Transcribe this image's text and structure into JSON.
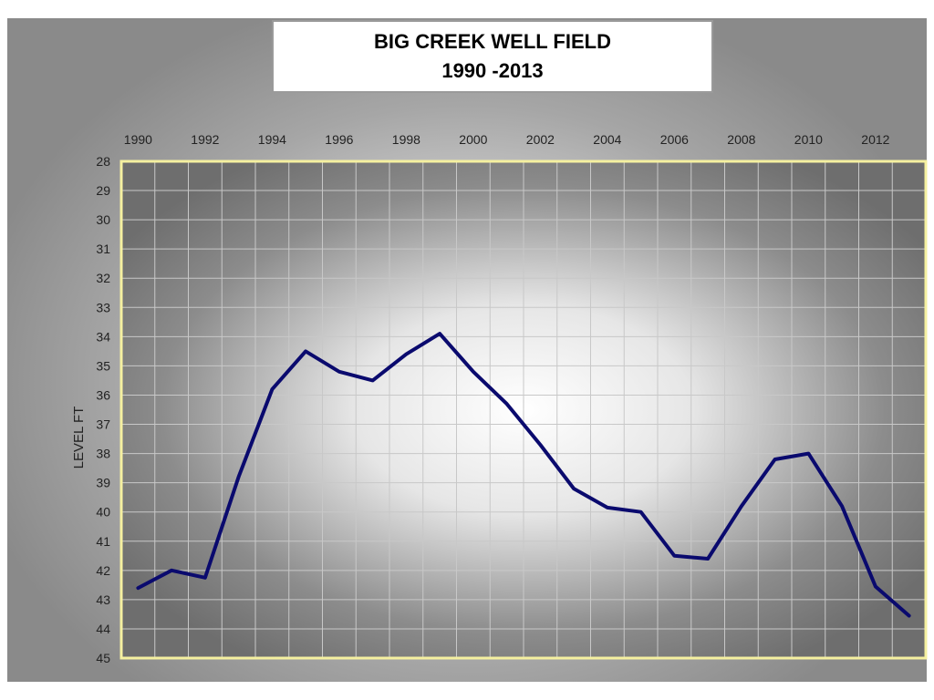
{
  "chart_data": {
    "type": "line",
    "title_line1": "BIG CREEK WELL FIELD",
    "title_line2": "1990 -2013",
    "xlabel": "",
    "ylabel": "LEVEL FT",
    "x_axis_position": "top",
    "y_axis_inverted": true,
    "xlim": [
      1990,
      2013
    ],
    "ylim": [
      28,
      45
    ],
    "x_ticks": [
      1990,
      1992,
      1994,
      1996,
      1998,
      2000,
      2002,
      2004,
      2006,
      2008,
      2010,
      2012
    ],
    "y_ticks": [
      28,
      29,
      30,
      31,
      32,
      33,
      34,
      35,
      36,
      37,
      38,
      39,
      40,
      41,
      42,
      43,
      44,
      45
    ],
    "grid": true,
    "plot_background": "radial gradient gray-white",
    "plot_border_color": "#f5f0a0",
    "line_color": "#0a0a6e",
    "series": [
      {
        "x": [
          1990,
          1991,
          1992,
          1993,
          1994,
          1995,
          1996,
          1997,
          1998,
          1999,
          2000,
          2001,
          2002,
          2003,
          2004,
          2005,
          2006,
          2007,
          2008,
          2009,
          2010,
          2011,
          2012,
          2013
        ],
        "y": [
          42.6,
          42.0,
          42.25,
          38.8,
          35.8,
          34.5,
          35.2,
          35.5,
          34.6,
          33.9,
          35.2,
          36.3,
          37.7,
          39.2,
          39.85,
          40.0,
          41.5,
          41.6,
          39.8,
          38.2,
          38.0,
          39.8,
          42.55,
          43.55
        ]
      }
    ]
  }
}
